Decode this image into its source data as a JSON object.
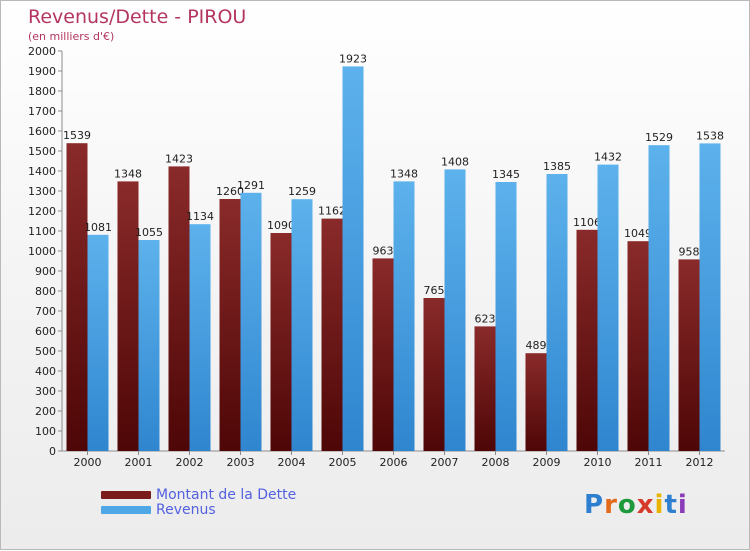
{
  "header": {
    "title": "Revenus/Dette - PIROU",
    "subtitle": "(en milliers d'€)"
  },
  "brand": {
    "letters": [
      "P",
      "r",
      "o",
      "x",
      "i",
      "t",
      "i"
    ],
    "colors": [
      "#2e7fcf",
      "#e26a1a",
      "#1e9a3c",
      "#d63a2a",
      "#e8b400",
      "#2e7fcf",
      "#8a3bb8"
    ]
  },
  "chart_data": {
    "type": "bar",
    "title": "Revenus/Dette - PIROU",
    "subtitle": "(en milliers d'€)",
    "categories": [
      "2000",
      "2001",
      "2002",
      "2003",
      "2004",
      "2005",
      "2006",
      "2007",
      "2008",
      "2009",
      "2010",
      "2011",
      "2012"
    ],
    "series": [
      {
        "name": "Montant de la Dette",
        "color": "#7a1c1c",
        "values": [
          1539,
          1348,
          1423,
          1260,
          1090,
          1162,
          963,
          765,
          623,
          489,
          1106,
          1049,
          958
        ],
        "labels": [
          "1539",
          "1348",
          "1423",
          "1260",
          "1090",
          "1162",
          "963",
          "765",
          "623",
          "489",
          "1106",
          "1049",
          "958"
        ]
      },
      {
        "name": "Revenus",
        "color": "#4fa7e6",
        "values": [
          1081,
          1055,
          1134,
          1291,
          1259,
          1923,
          1348,
          1408,
          1345,
          1385,
          1432,
          1529,
          1538
        ],
        "labels": [
          "1081",
          "1055",
          "1134",
          "1291",
          "1259",
          "1923",
          "1348",
          "1408",
          "1345",
          "1385",
          "1432",
          "1529",
          "1538"
        ]
      }
    ],
    "ylim": [
      0,
      2000
    ],
    "yticks": [
      "0",
      "100",
      "200",
      "300",
      "400",
      "500",
      "600",
      "700",
      "800",
      "900",
      "1000",
      "1100",
      "1200",
      "1300",
      "1400",
      "1500",
      "1600",
      "1700",
      "1800",
      "1900",
      "2000"
    ],
    "grid": false,
    "legend_position": "bottom-left"
  }
}
